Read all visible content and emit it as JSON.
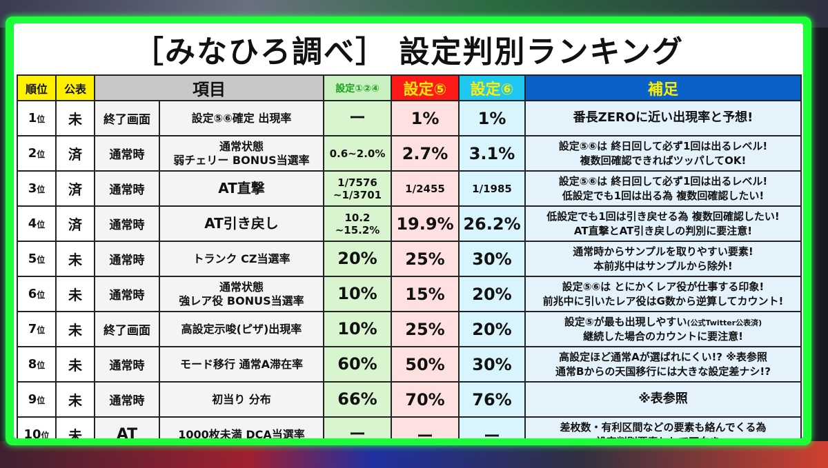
{
  "title": "［みなひろ調べ］ 設定判別ランキング",
  "headers": {
    "rank": "順位",
    "published": "公表",
    "item": "項目",
    "s124": "設定①②④",
    "s5": "設定⑤",
    "s6": "設定⑥",
    "note": "補足"
  },
  "rows": [
    {
      "rank": "1",
      "rank_suffix": "位",
      "published": "未",
      "timing": "終了画面",
      "item": [
        "設定⑤⑥確定 出現率"
      ],
      "s124": [
        "ー"
      ],
      "s5": "1%",
      "s6": "1%",
      "note": [
        "番長ZEROに近い出現率と予想!"
      ]
    },
    {
      "rank": "2",
      "rank_suffix": "位",
      "published": "済",
      "timing": "通常時",
      "item": [
        "通常状態",
        "弱チェリー BONUS当選率"
      ],
      "s124": [
        "0.6~2.0%"
      ],
      "s5": "2.7%",
      "s6": "3.1%",
      "note": [
        "設定⑤⑥は 終日回して必ず1回は出るレベル!",
        "複数回確認できればツッパしてOK!"
      ]
    },
    {
      "rank": "3",
      "rank_suffix": "位",
      "published": "済",
      "timing": "通常時",
      "item": [
        "AT直撃"
      ],
      "s124": [
        "1/7576",
        "~1/3701"
      ],
      "s5": "1/2455",
      "s6": "1/1985",
      "note": [
        "設定⑤⑥は 終日回して必ず1回は出るレベル!",
        "低設定でも1回は出る為 複数回確認したい!"
      ]
    },
    {
      "rank": "4",
      "rank_suffix": "位",
      "published": "済",
      "timing": "通常時",
      "item": [
        "AT引き戻し"
      ],
      "s124": [
        "10.2",
        "~15.2%"
      ],
      "s5": "19.9%",
      "s6": "26.2%",
      "note": [
        "低設定でも1回は引き戻せる為 複数回確認したい!",
        "AT直撃とAT引き戻しの判別に要注意!"
      ]
    },
    {
      "rank": "5",
      "rank_suffix": "位",
      "published": "未",
      "timing": "通常時",
      "item": [
        "トランク CZ当選率"
      ],
      "s124": [
        "20%"
      ],
      "s5": "25%",
      "s6": "30%",
      "note": [
        "通常時からサンプルを取りやすい要素!",
        "本前兆中はサンプルから除外!"
      ]
    },
    {
      "rank": "6",
      "rank_suffix": "位",
      "published": "未",
      "timing": "通常時",
      "item": [
        "通常状態",
        "強レア役 BONUS当選率"
      ],
      "s124": [
        "10%"
      ],
      "s5": "15%",
      "s6": "20%",
      "note": [
        "設定⑤⑥は とにかくレア役が仕事する印象!",
        "前兆中に引いたレア役はG数から逆算してカウント!"
      ]
    },
    {
      "rank": "7",
      "rank_suffix": "位",
      "published": "未",
      "timing": "終了画面",
      "item": [
        "高設定示唆(ピザ)出現率"
      ],
      "s124": [
        "10%"
      ],
      "s5": "25%",
      "s6": "20%",
      "note": [
        "設定⑤が最も出現しやすい",
        "継続した場合のカウントに要注意!"
      ],
      "note_small": "(公式Twitter公表済)"
    },
    {
      "rank": "8",
      "rank_suffix": "位",
      "published": "未",
      "timing": "通常時",
      "item": [
        "モード移行 通常A滞在率"
      ],
      "s124": [
        "60%"
      ],
      "s5": "50%",
      "s6": "30%",
      "note": [
        "高設定ほど通常Aが選ばれにくい!? ※表参照",
        "通常Bからの天国移行には大きな設定差ナシ!?"
      ]
    },
    {
      "rank": "9",
      "rank_suffix": "位",
      "published": "未",
      "timing": "通常時",
      "item": [
        "初当り 分布"
      ],
      "s124": [
        "66%"
      ],
      "s5": "70%",
      "s6": "76%",
      "note": [
        "※表参照"
      ]
    },
    {
      "rank": "10",
      "rank_suffix": "位",
      "published": "未",
      "timing": "AT",
      "item": [
        "1000枚未満 DCA当選率"
      ],
      "s124": [
        "ー"
      ],
      "s5": "ー",
      "s6": "ー",
      "note": [
        "差枚数・有利区間などの要素も絡んでくる為",
        "設定判別要素として不向き…"
      ]
    }
  ]
}
